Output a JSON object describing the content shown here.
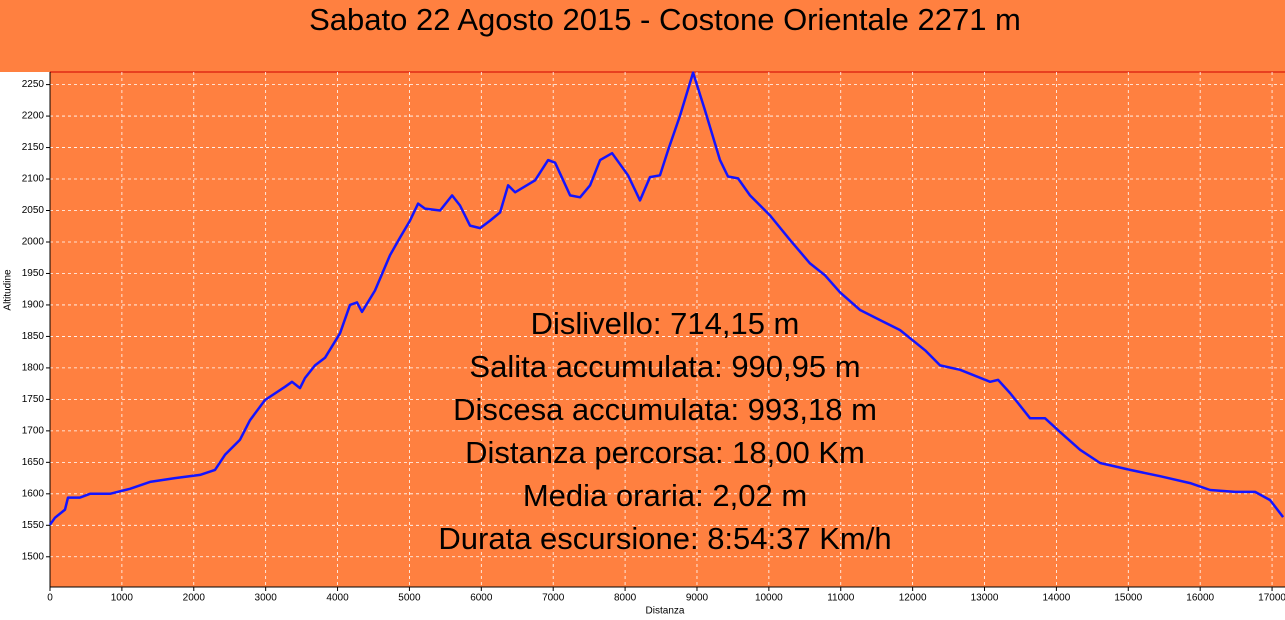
{
  "chart_data": {
    "type": "line",
    "title": "Sabato 22 Agosto 2015 - Costone Orientale 2271 m",
    "x_label": "Distanza",
    "y_label": "Altitudine",
    "annotations": [
      "Dislivello: 714,15 m",
      "Salita accumulata: 990,95 m",
      "Discesa accumulata: 993,18 m",
      "Distanza percorsa: 18,00 Km",
      "Media oraria: 2,02 m",
      "Durata escursione: 8:54:37 Km/h"
    ],
    "x": [
      0,
      70,
      209,
      250,
      417,
      556,
      835,
      1113,
      1391,
      1739,
      2087,
      2295,
      2435,
      2643,
      2782,
      2991,
      3269,
      3366,
      3478,
      3547,
      3686,
      3826,
      4034,
      4173,
      4271,
      4340,
      4521,
      4730,
      4869,
      5008,
      5120,
      5217,
      5426,
      5593,
      5704,
      5843,
      5983,
      6122,
      6261,
      6372,
      6470,
      6748,
      6929,
      7026,
      7235,
      7374,
      7513,
      7652,
      7819,
      8041,
      8208,
      8347,
      8486,
      8598,
      8765,
      8946,
      9112,
      9321,
      9432,
      9571,
      9738,
      10017,
      10295,
      10573,
      10782,
      10991,
      11269,
      11547,
      11825,
      12173,
      12382,
      12660,
      13077,
      13189,
      13356,
      13634,
      13843,
      14051,
      14330,
      14608,
      15025,
      15443,
      15860,
      16138,
      16486,
      16764,
      16973,
      17154
    ],
    "series": [
      {
        "name": "Altitudine",
        "color": "#1414ff",
        "values": [
          1551,
          1562,
          1575,
          1594,
          1594,
          1600,
          1600,
          1608,
          1619,
          1625,
          1630,
          1638,
          1662,
          1686,
          1717,
          1749,
          1770,
          1778,
          1768,
          1784,
          1804,
          1816,
          1855,
          1900,
          1904,
          1889,
          1923,
          1979,
          2007,
          2034,
          2061,
          2053,
          2050,
          2074,
          2058,
          2026,
          2022,
          2034,
          2047,
          2090,
          2079,
          2098,
          2130,
          2126,
          2074,
          2071,
          2090,
          2130,
          2141,
          2106,
          2066,
          2103,
          2106,
          2146,
          2201,
          2269,
          2209,
          2130,
          2104,
          2101,
          2074,
          2042,
          2003,
          1966,
          1947,
          1920,
          1892,
          1876,
          1860,
          1828,
          1804,
          1797,
          1778,
          1781,
          1760,
          1720,
          1720,
          1698,
          1670,
          1649,
          1638,
          1628,
          1617,
          1606,
          1603,
          1603,
          1590,
          1563
        ]
      }
    ],
    "xlim": [
      0,
      17180
    ],
    "ylim": [
      1452,
      2270
    ],
    "xticks": [
      0,
      1000,
      2000,
      3000,
      4000,
      5000,
      6000,
      7000,
      8000,
      9000,
      10000,
      11000,
      12000,
      13000,
      14000,
      15000,
      16000,
      17000
    ],
    "yticks": [
      1500,
      1550,
      1600,
      1650,
      1700,
      1750,
      1800,
      1850,
      1900,
      1950,
      2000,
      2050,
      2100,
      2150,
      2200,
      2250
    ],
    "grid": true,
    "background": "#ff8040"
  }
}
